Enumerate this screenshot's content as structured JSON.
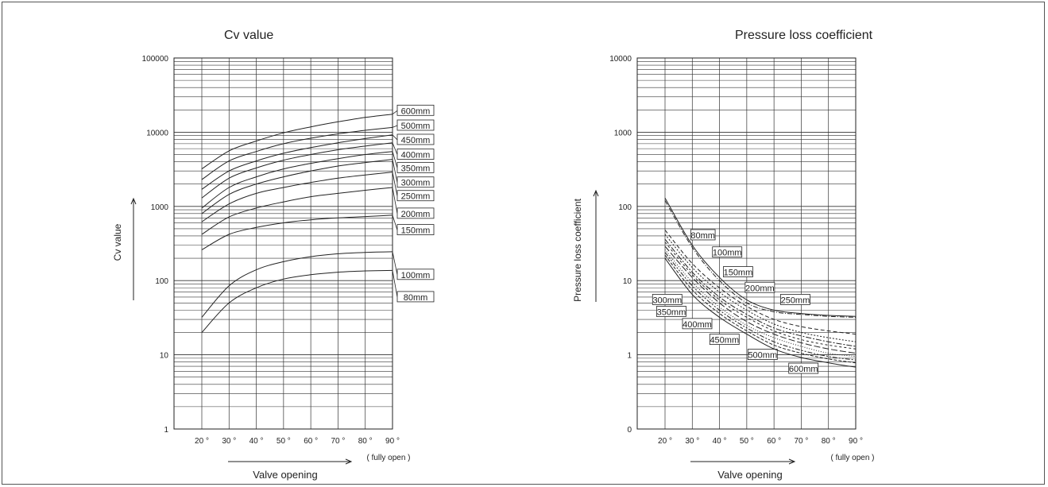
{
  "chart_data": [
    {
      "type": "line",
      "title": "Cv value",
      "ylabel": "Cv value",
      "xlabel": "Valve opening",
      "x_note": "( fully open )",
      "y_scale": "log",
      "ylim": [
        1,
        100000
      ],
      "y_ticks": [
        {
          "value": 1,
          "label": "1"
        },
        {
          "value": 10,
          "label": "10"
        },
        {
          "value": 100,
          "label": "100"
        },
        {
          "value": 1000,
          "label": "1000"
        },
        {
          "value": 10000,
          "label": "10000"
        },
        {
          "value": 100000,
          "label": "100000"
        }
      ],
      "xlim": [
        10,
        90
      ],
      "x_ticks": [
        {
          "value": 20,
          "label": "20 °"
        },
        {
          "value": 30,
          "label": "30 °"
        },
        {
          "value": 40,
          "label": "40 °"
        },
        {
          "value": 50,
          "label": "50 °"
        },
        {
          "value": 60,
          "label": "60 °"
        },
        {
          "value": 70,
          "label": "70 °"
        },
        {
          "value": 80,
          "label": "80 °"
        },
        {
          "value": 90,
          "label": "90 °"
        }
      ],
      "x": [
        20,
        30,
        40,
        50,
        60,
        70,
        80,
        90
      ],
      "series": [
        {
          "name": "600mm",
          "values": [
            3200,
            5600,
            7600,
            9800,
            11800,
            13800,
            15800,
            17500
          ],
          "label_y": 19500
        },
        {
          "name": "500mm",
          "values": [
            2300,
            4100,
            5500,
            7000,
            8300,
            9500,
            10600,
            11600
          ],
          "label_y": 12300
        },
        {
          "name": "450mm",
          "values": [
            1700,
            3000,
            4100,
            5200,
            6200,
            7200,
            8200,
            9200
          ],
          "label_y": 7900
        },
        {
          "name": "400mm",
          "values": [
            1300,
            2400,
            3300,
            4200,
            5000,
            5800,
            6500,
            7200
          ],
          "label_y": 5000
        },
        {
          "name": "350mm",
          "values": [
            950,
            1800,
            2500,
            3200,
            3800,
            4400,
            5000,
            5500
          ],
          "label_y": 3300
        },
        {
          "name": "300mm",
          "values": [
            800,
            1450,
            2000,
            2500,
            3000,
            3500,
            3900,
            4300
          ],
          "label_y": 2100
        },
        {
          "name": "250mm",
          "values": [
            620,
            1080,
            1500,
            1800,
            2100,
            2400,
            2650,
            2900
          ],
          "label_y": 1380
        },
        {
          "name": "200mm",
          "values": [
            420,
            720,
            950,
            1150,
            1350,
            1500,
            1650,
            1800
          ],
          "label_y": 800
        },
        {
          "name": "150mm",
          "values": [
            260,
            420,
            520,
            600,
            660,
            700,
            730,
            760
          ],
          "label_y": 480
        },
        {
          "name": "100mm",
          "values": [
            32,
            85,
            140,
            180,
            210,
            230,
            240,
            245
          ],
          "label_y": 120
        },
        {
          "name": "80mm",
          "values": [
            20,
            50,
            80,
            105,
            120,
            130,
            135,
            137
          ],
          "label_y": 60
        }
      ]
    },
    {
      "type": "line",
      "title": "Pressure loss coefficient",
      "ylabel": "Pressure loss coefficient",
      "xlabel": "Valve opening",
      "x_note": "( fully open )",
      "y_scale": "log",
      "y_ticks": [
        {
          "value": 0.1,
          "label": "0"
        },
        {
          "value": 1,
          "label": "1"
        },
        {
          "value": 10,
          "label": "10"
        },
        {
          "value": 100,
          "label": "100"
        },
        {
          "value": 1000,
          "label": "1000"
        },
        {
          "value": 10000,
          "label": "10000"
        }
      ],
      "xlim": [
        10,
        90
      ],
      "x_ticks": [
        {
          "value": 20,
          "label": "20 °"
        },
        {
          "value": 30,
          "label": "30 °"
        },
        {
          "value": 40,
          "label": "40 °"
        },
        {
          "value": 50,
          "label": "50 °"
        },
        {
          "value": 60,
          "label": "60 °"
        },
        {
          "value": 70,
          "label": "70 °"
        },
        {
          "value": 80,
          "label": "80 °"
        },
        {
          "value": 90,
          "label": "90 °"
        }
      ],
      "x": [
        20,
        30,
        40,
        50,
        60,
        70,
        80,
        90
      ],
      "series": [
        {
          "name": "80mm",
          "values": [
            130,
            30,
            11,
            5.5,
            4,
            3.6,
            3.4,
            3.3
          ],
          "label_x": 30,
          "label_y": 41
        },
        {
          "name": "100mm",
          "values": [
            120,
            28,
            10,
            5,
            3.8,
            3.5,
            3.3,
            3.2
          ],
          "label_x": 38,
          "label_y": 24
        },
        {
          "name": "150mm",
          "values": [
            48,
            17,
            8,
            4.5,
            3,
            2.4,
            2.1,
            1.9
          ],
          "label_x": 42,
          "label_y": 13
        },
        {
          "name": "200mm",
          "values": [
            42,
            15,
            7,
            4,
            2.6,
            2,
            1.7,
            1.5
          ],
          "label_x": 50,
          "label_y": 8
        },
        {
          "name": "250mm",
          "values": [
            36,
            13,
            6,
            3.5,
            2.3,
            1.8,
            1.5,
            1.3
          ],
          "label_x": 63,
          "label_y": 5.5
        },
        {
          "name": "300mm",
          "values": [
            33,
            12,
            5.5,
            3.2,
            2.1,
            1.6,
            1.35,
            1.2
          ],
          "label_x": 16,
          "label_y": 5.5
        },
        {
          "name": "350mm",
          "values": [
            29,
            11,
            5,
            2.8,
            1.9,
            1.45,
            1.2,
            1.05
          ],
          "label_x": 17.5,
          "label_y": 3.8
        },
        {
          "name": "400mm",
          "values": [
            26,
            9.5,
            4.4,
            2.5,
            1.7,
            1.3,
            1.05,
            0.95
          ],
          "label_x": 27,
          "label_y": 2.6
        },
        {
          "name": "450mm",
          "values": [
            24,
            8.5,
            4,
            2.3,
            1.5,
            1.15,
            0.95,
            0.85
          ],
          "label_x": 37,
          "label_y": 1.6
        },
        {
          "name": "500mm",
          "values": [
            22,
            7.5,
            3.6,
            2.1,
            1.35,
            1.05,
            0.88,
            0.78
          ],
          "label_x": 51,
          "label_y": 1.0
        },
        {
          "name": "600mm",
          "values": [
            20,
            6.5,
            3.2,
            1.9,
            1.2,
            0.92,
            0.78,
            0.68
          ],
          "label_x": 66,
          "label_y": 0.65
        }
      ]
    }
  ]
}
